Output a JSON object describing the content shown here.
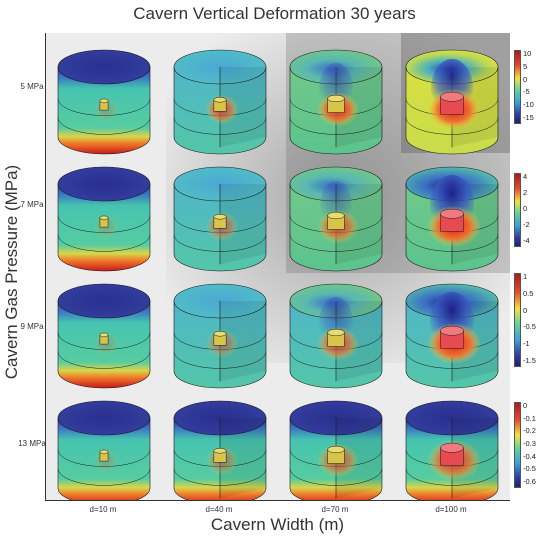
{
  "title": "Cavern Vertical Deformation 30 years",
  "y_axis_label": "Cavern Gas Pressure (MPa)",
  "x_axis_label": "Cavern Width (m)",
  "rows": [
    "5 MPa",
    "7 MPa",
    "9 MPa",
    "13 MPa"
  ],
  "columns": [
    "d=10 m",
    "d=40 m",
    "d=70 m",
    "d=100 m"
  ],
  "colorbars": [
    {
      "ticks": [
        "10",
        "5",
        "0",
        "-5",
        "-10",
        "-15"
      ]
    },
    {
      "ticks": [
        "4",
        "2",
        "0",
        "-2",
        "-4"
      ]
    },
    {
      "ticks": [
        "1",
        "0.5",
        "0",
        "-0.5",
        "-1",
        "-1.5"
      ]
    },
    {
      "ticks": [
        "0",
        "-0.1",
        "-0.2",
        "-0.3",
        "-0.4",
        "-0.5",
        "-0.6"
      ]
    }
  ],
  "colors": {
    "background_panel": "#ececec",
    "deformation_low": "#2b2f8f",
    "deformation_mid": "#4fd0a8",
    "deformation_high": "#d81e1e",
    "shadow": "#6a6a6a"
  }
}
